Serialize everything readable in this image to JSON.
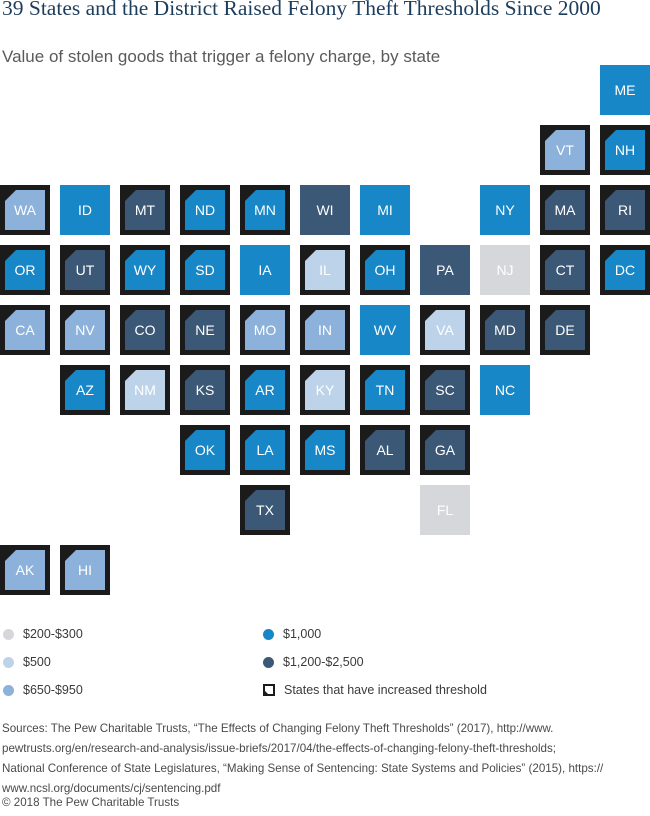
{
  "header": {
    "title": "39 States and the District Raised Felony Theft Thresholds Since 2000",
    "subtitle": "Value of stolen goods that trigger a felony charge, by state"
  },
  "colors": {
    "c200": "#d5d7da",
    "c500": "#bdd3ea",
    "c650": "#8cb2db",
    "c1000": "#1787c7",
    "c1200": "#3b5877",
    "border": "#1b1b1b"
  },
  "chart_data": {
    "type": "tile-map",
    "title": "39 States and the District Raised Felony Theft Thresholds Since 2000",
    "subtitle": "Value of stolen goods that trigger a felony charge, by state",
    "categories": [
      {
        "key": "c200",
        "label": "$200-$300"
      },
      {
        "key": "c500",
        "label": "$500"
      },
      {
        "key": "c650",
        "label": "$650-$950"
      },
      {
        "key": "c1000",
        "label": "$1,000"
      },
      {
        "key": "c1200",
        "label": "$1,200-$2,500"
      }
    ],
    "increased_label": "States that have increased threshold",
    "states": [
      {
        "abbr": "ME",
        "row": 0,
        "col": 10,
        "cat": "c1000",
        "increased": false
      },
      {
        "abbr": "VT",
        "row": 1,
        "col": 9,
        "cat": "c650",
        "increased": true
      },
      {
        "abbr": "NH",
        "row": 1,
        "col": 10,
        "cat": "c1000",
        "increased": true
      },
      {
        "abbr": "WA",
        "row": 2,
        "col": 0,
        "cat": "c650",
        "increased": true
      },
      {
        "abbr": "ID",
        "row": 2,
        "col": 1,
        "cat": "c1000",
        "increased": false
      },
      {
        "abbr": "MT",
        "row": 2,
        "col": 2,
        "cat": "c1200",
        "increased": true
      },
      {
        "abbr": "ND",
        "row": 2,
        "col": 3,
        "cat": "c1000",
        "increased": true
      },
      {
        "abbr": "MN",
        "row": 2,
        "col": 4,
        "cat": "c1000",
        "increased": true
      },
      {
        "abbr": "WI",
        "row": 2,
        "col": 5,
        "cat": "c1200",
        "increased": false
      },
      {
        "abbr": "MI",
        "row": 2,
        "col": 6,
        "cat": "c1000",
        "increased": false
      },
      {
        "abbr": "NY",
        "row": 2,
        "col": 8,
        "cat": "c1000",
        "increased": false
      },
      {
        "abbr": "MA",
        "row": 2,
        "col": 9,
        "cat": "c1200",
        "increased": true
      },
      {
        "abbr": "RI",
        "row": 2,
        "col": 10,
        "cat": "c1200",
        "increased": true
      },
      {
        "abbr": "OR",
        "row": 3,
        "col": 0,
        "cat": "c1000",
        "increased": true
      },
      {
        "abbr": "UT",
        "row": 3,
        "col": 1,
        "cat": "c1200",
        "increased": true
      },
      {
        "abbr": "WY",
        "row": 3,
        "col": 2,
        "cat": "c1000",
        "increased": true
      },
      {
        "abbr": "SD",
        "row": 3,
        "col": 3,
        "cat": "c1000",
        "increased": true
      },
      {
        "abbr": "IA",
        "row": 3,
        "col": 4,
        "cat": "c1000",
        "increased": false
      },
      {
        "abbr": "IL",
        "row": 3,
        "col": 5,
        "cat": "c500",
        "increased": true
      },
      {
        "abbr": "OH",
        "row": 3,
        "col": 6,
        "cat": "c1000",
        "increased": true
      },
      {
        "abbr": "PA",
        "row": 3,
        "col": 7,
        "cat": "c1200",
        "increased": false
      },
      {
        "abbr": "NJ",
        "row": 3,
        "col": 8,
        "cat": "c200",
        "increased": false
      },
      {
        "abbr": "CT",
        "row": 3,
        "col": 9,
        "cat": "c1200",
        "increased": true
      },
      {
        "abbr": "DC",
        "row": 3,
        "col": 10,
        "cat": "c1000",
        "increased": true
      },
      {
        "abbr": "CA",
        "row": 4,
        "col": 0,
        "cat": "c650",
        "increased": true
      },
      {
        "abbr": "NV",
        "row": 4,
        "col": 1,
        "cat": "c650",
        "increased": true
      },
      {
        "abbr": "CO",
        "row": 4,
        "col": 2,
        "cat": "c1200",
        "increased": true
      },
      {
        "abbr": "NE",
        "row": 4,
        "col": 3,
        "cat": "c1200",
        "increased": true
      },
      {
        "abbr": "MO",
        "row": 4,
        "col": 4,
        "cat": "c650",
        "increased": true
      },
      {
        "abbr": "IN",
        "row": 4,
        "col": 5,
        "cat": "c650",
        "increased": true
      },
      {
        "abbr": "WV",
        "row": 4,
        "col": 6,
        "cat": "c1000",
        "increased": false
      },
      {
        "abbr": "VA",
        "row": 4,
        "col": 7,
        "cat": "c500",
        "increased": true
      },
      {
        "abbr": "MD",
        "row": 4,
        "col": 8,
        "cat": "c1200",
        "increased": true
      },
      {
        "abbr": "DE",
        "row": 4,
        "col": 9,
        "cat": "c1200",
        "increased": true
      },
      {
        "abbr": "AZ",
        "row": 5,
        "col": 1,
        "cat": "c1000",
        "increased": true
      },
      {
        "abbr": "NM",
        "row": 5,
        "col": 2,
        "cat": "c500",
        "increased": true
      },
      {
        "abbr": "KS",
        "row": 5,
        "col": 3,
        "cat": "c1200",
        "increased": true
      },
      {
        "abbr": "AR",
        "row": 5,
        "col": 4,
        "cat": "c1000",
        "increased": true
      },
      {
        "abbr": "KY",
        "row": 5,
        "col": 5,
        "cat": "c500",
        "increased": true
      },
      {
        "abbr": "TN",
        "row": 5,
        "col": 6,
        "cat": "c1000",
        "increased": true
      },
      {
        "abbr": "SC",
        "row": 5,
        "col": 7,
        "cat": "c1200",
        "increased": true
      },
      {
        "abbr": "NC",
        "row": 5,
        "col": 8,
        "cat": "c1000",
        "increased": false
      },
      {
        "abbr": "OK",
        "row": 6,
        "col": 3,
        "cat": "c1000",
        "increased": true
      },
      {
        "abbr": "LA",
        "row": 6,
        "col": 4,
        "cat": "c1000",
        "increased": true
      },
      {
        "abbr": "MS",
        "row": 6,
        "col": 5,
        "cat": "c1000",
        "increased": true
      },
      {
        "abbr": "AL",
        "row": 6,
        "col": 6,
        "cat": "c1200",
        "increased": true
      },
      {
        "abbr": "GA",
        "row": 6,
        "col": 7,
        "cat": "c1200",
        "increased": true
      },
      {
        "abbr": "TX",
        "row": 7,
        "col": 4,
        "cat": "c1200",
        "increased": true
      },
      {
        "abbr": "FL",
        "row": 7,
        "col": 7,
        "cat": "c200",
        "increased": false
      },
      {
        "abbr": "AK",
        "row": 8,
        "col": 0,
        "cat": "c650",
        "increased": true
      },
      {
        "abbr": "HI",
        "row": 8,
        "col": 1,
        "cat": "c650",
        "increased": true
      }
    ]
  },
  "footer": {
    "sources_line1": "Sources: The Pew Charitable Trusts, “The Effects of Changing Felony Theft Thresholds” (2017), http://www.",
    "sources_line2": "pewtrusts.org/en/research-and-analysis/issue-briefs/2017/04/the-effects-of-changing-felony-theft-thresholds;",
    "sources_line3": "National Conference of State Legislatures, “Making Sense of Sentencing: State Systems and Policies” (2015), https://",
    "sources_line4": "www.ncsl.org/documents/cj/sentencing.pdf",
    "copyright": "© 2018 The Pew Charitable Trusts"
  }
}
